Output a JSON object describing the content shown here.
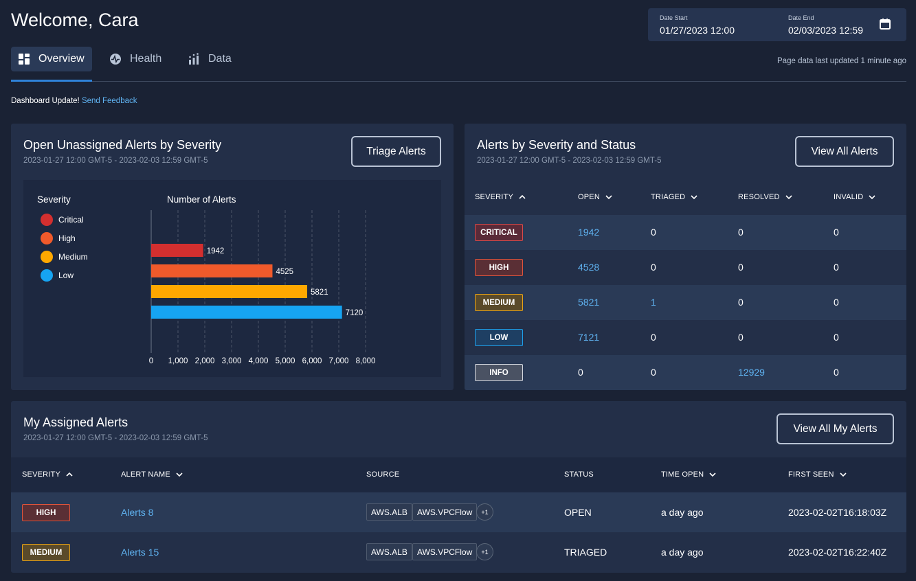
{
  "header": {
    "welcome": "Welcome, Cara",
    "date_start_label": "Date Start",
    "date_start_value": "01/27/2023 12:00",
    "date_end_label": "Date End",
    "date_end_value": "02/03/2023 12:59",
    "last_updated": "Page data last updated 1 minute ago"
  },
  "tabs": [
    {
      "label": "Overview",
      "active": true,
      "icon": "dashboard-icon"
    },
    {
      "label": "Health",
      "active": false,
      "icon": "heartbeat-icon"
    },
    {
      "label": "Data",
      "active": false,
      "icon": "data-chart-icon"
    }
  ],
  "feedback": {
    "text": "Dashboard Update!",
    "link": "Send Feedback"
  },
  "unassigned": {
    "title": "Open Unassigned Alerts by Severity",
    "range": "2023-01-27 12:00 GMT-5 - 2023-02-03 12:59 GMT-5",
    "button": "Triage Alerts",
    "legend_title": "Severity",
    "chart_title": "Number of Alerts"
  },
  "chart_data": {
    "type": "bar",
    "orientation": "horizontal",
    "title": "Number of Alerts",
    "legend_title": "Severity",
    "categories": [
      "Critical",
      "High",
      "Medium",
      "Low"
    ],
    "values": [
      1942,
      4525,
      5821,
      7120
    ],
    "colors": [
      "#d32f2f",
      "#f05a2b",
      "#ffa800",
      "#16a4f2"
    ],
    "xlim": [
      0,
      8000
    ],
    "xticks": [
      "0",
      "1,000",
      "2,000",
      "3,000",
      "4,000",
      "5,000",
      "6,000",
      "7,000",
      "8,000"
    ],
    "grid": true,
    "legend_position": "left"
  },
  "status_table": {
    "title": "Alerts by Severity and Status",
    "range": "2023-01-27 12:00 GMT-5 - 2023-02-03 12:59 GMT-5",
    "button": "View All Alerts",
    "columns": [
      "SEVERITY",
      "OPEN",
      "TRIAGED",
      "RESOLVED",
      "INVALID"
    ],
    "rows": [
      {
        "severity": "CRITICAL",
        "open": "1942",
        "triaged": "0",
        "resolved": "0",
        "invalid": "0"
      },
      {
        "severity": "HIGH",
        "open": "4528",
        "triaged": "0",
        "resolved": "0",
        "invalid": "0"
      },
      {
        "severity": "MEDIUM",
        "open": "5821",
        "triaged": "1",
        "resolved": "0",
        "invalid": "0"
      },
      {
        "severity": "LOW",
        "open": "7121",
        "triaged": "0",
        "resolved": "0",
        "invalid": "0"
      },
      {
        "severity": "INFO",
        "open": "0",
        "triaged": "0",
        "resolved": "12929",
        "invalid": "0"
      }
    ]
  },
  "assigned": {
    "title": "My Assigned Alerts",
    "range": "2023-01-27 12:00 GMT-5 - 2023-02-03 12:59 GMT-5",
    "button": "View All My Alerts",
    "columns": [
      "SEVERITY",
      "ALERT NAME",
      "SOURCE",
      "STATUS",
      "TIME OPEN",
      "FIRST SEEN"
    ],
    "rows": [
      {
        "severity": "HIGH",
        "name": "Alerts 8",
        "sources": [
          "AWS.ALB",
          "AWS.VPCFlow"
        ],
        "more": "+1",
        "status": "OPEN",
        "time_open": "a day ago",
        "first_seen": "2023-02-02T16:18:03Z"
      },
      {
        "severity": "MEDIUM",
        "name": "Alerts 15",
        "sources": [
          "AWS.ALB",
          "AWS.VPCFlow"
        ],
        "more": "+1",
        "status": "TRIAGED",
        "time_open": "a day ago",
        "first_seen": "2023-02-02T16:22:40Z"
      }
    ]
  },
  "severity_colors": {
    "CRITICAL": {
      "bg": "#5a2a38",
      "border": "#d94a4a"
    },
    "HIGH": {
      "bg": "#5a2f35",
      "border": "#e0543c"
    },
    "MEDIUM": {
      "bg": "#5a4a2a",
      "border": "#e8a317"
    },
    "LOW": {
      "bg": "#1e3f63",
      "border": "#1e9ee8"
    },
    "INFO": {
      "bg": "#4a5263",
      "border": "#d4d8e0"
    }
  }
}
